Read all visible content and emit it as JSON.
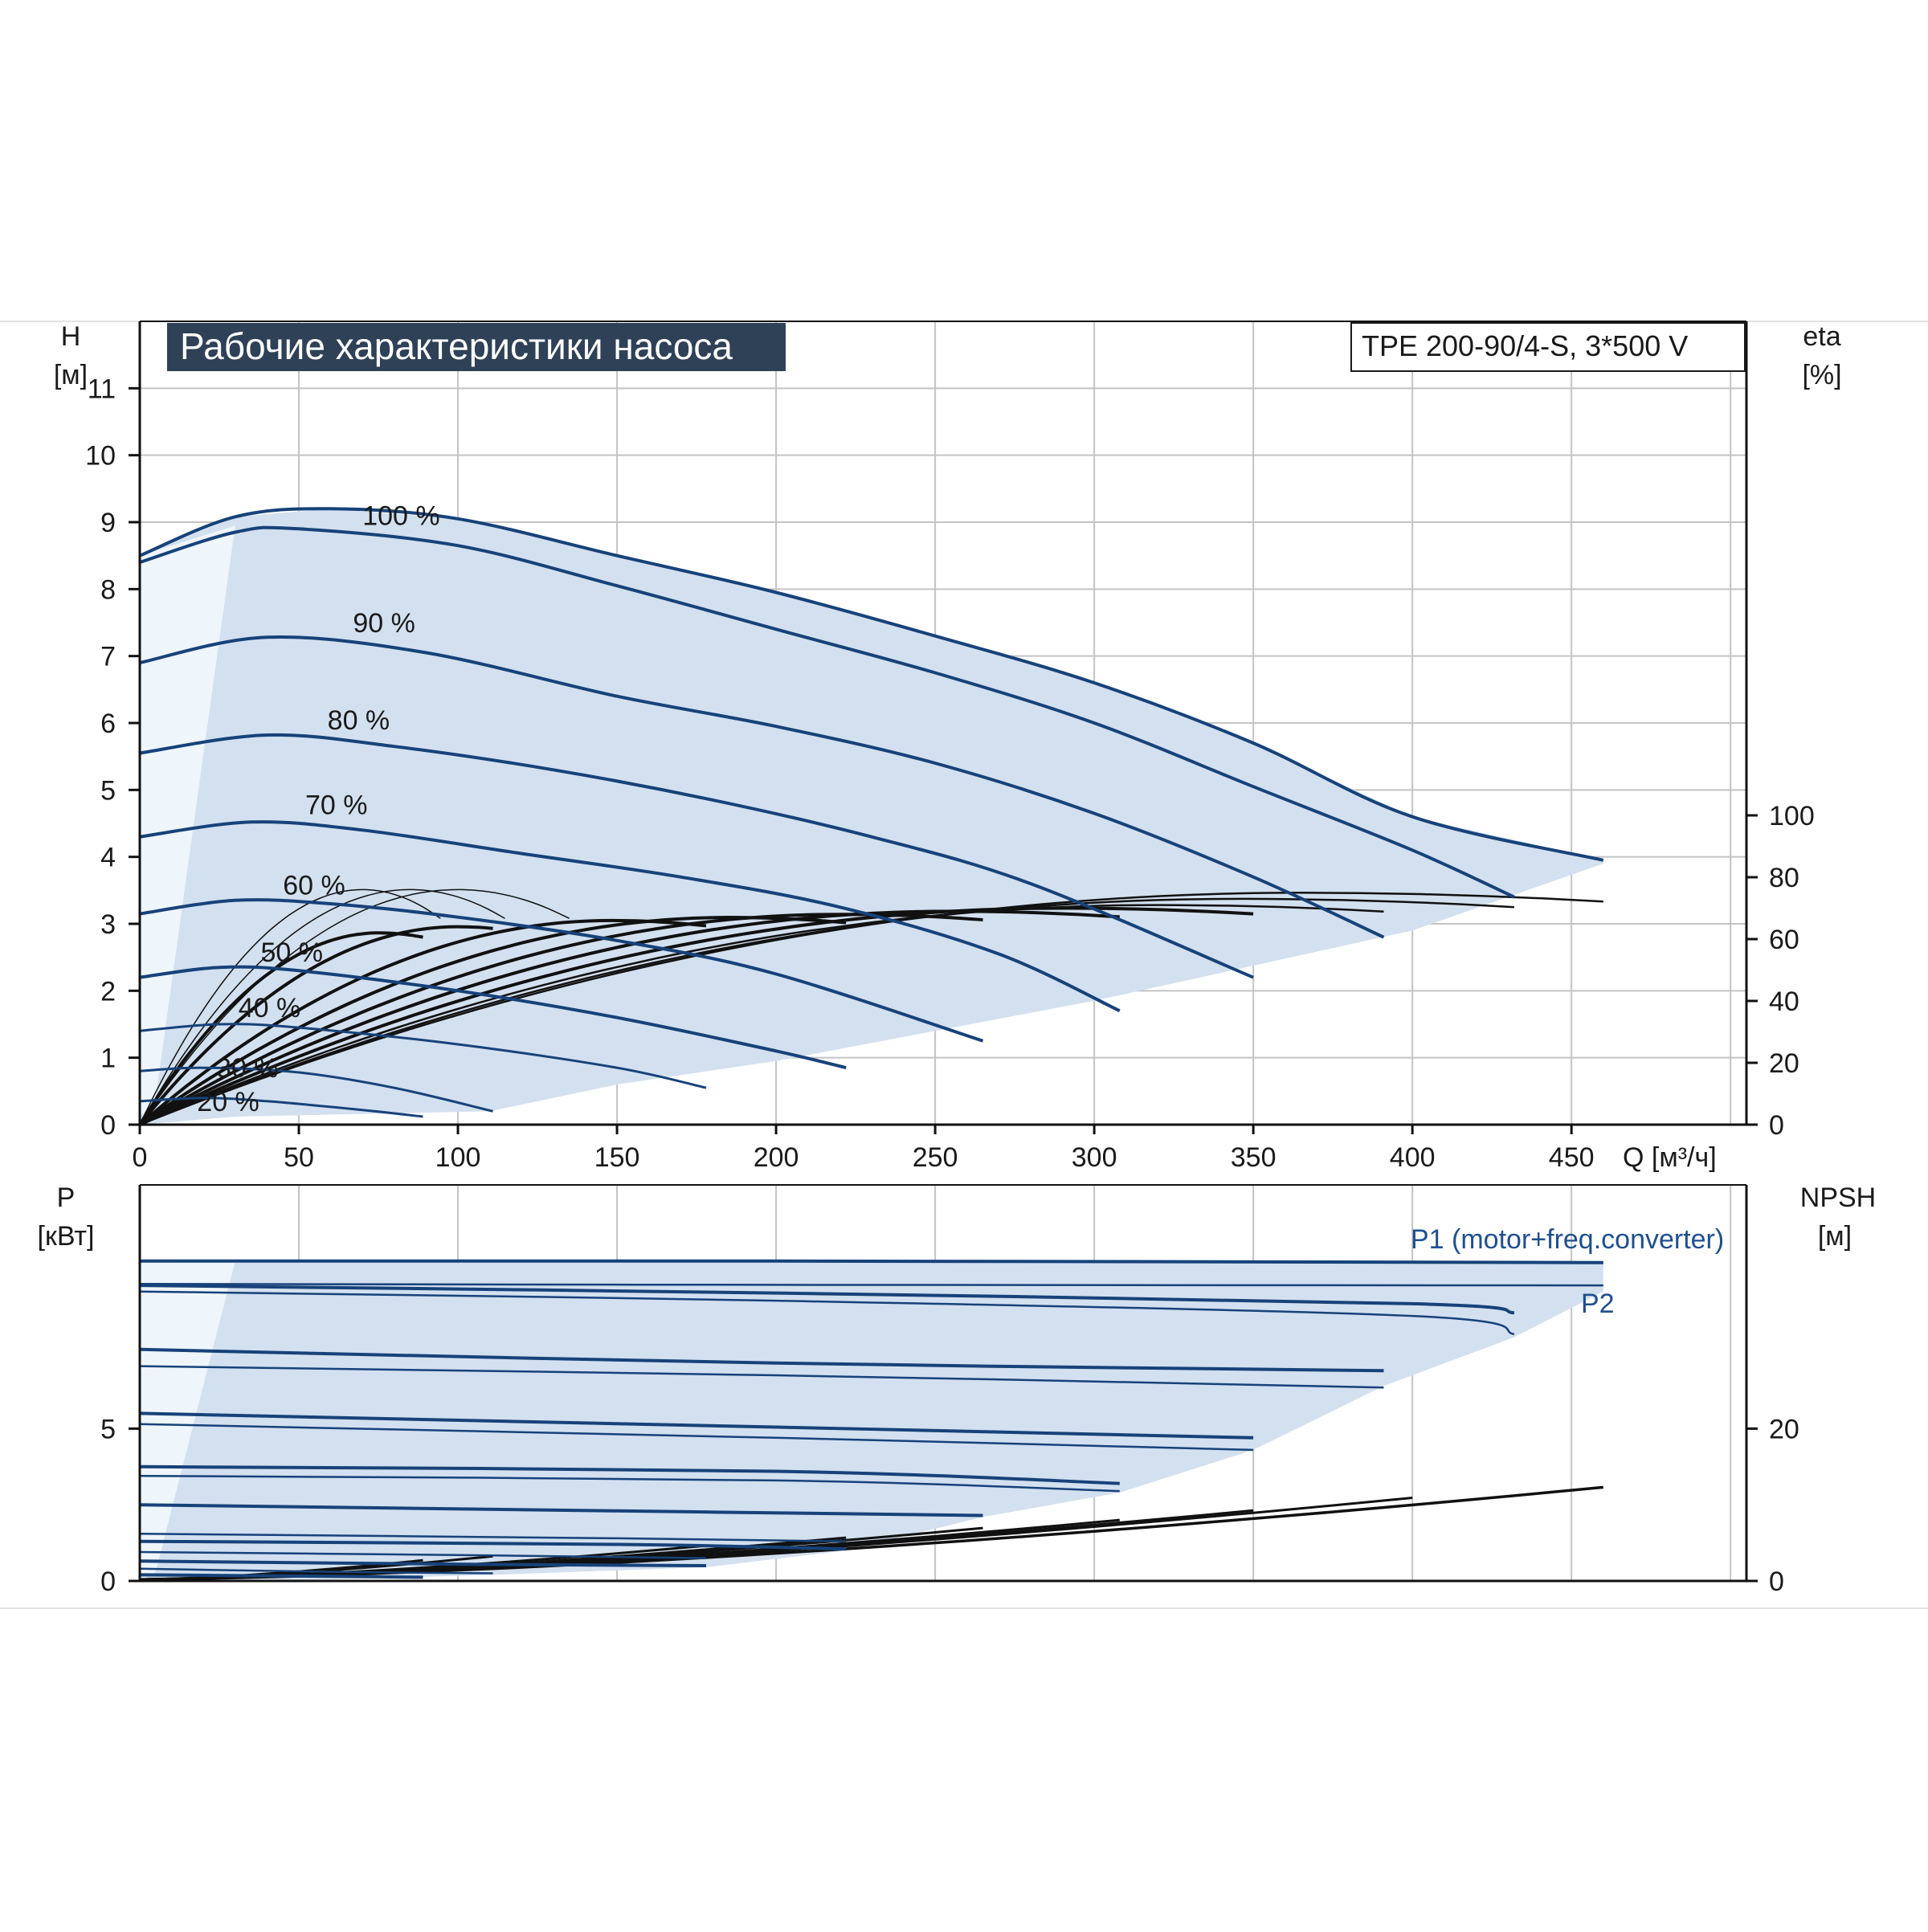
{
  "title": "Рабочие характеристики насоса",
  "model": "TPE 200-90/4-S, 3*500 V",
  "colors": {
    "region_fill": "#d3e0ef",
    "region_fill_light": "#eef5fb",
    "curve_blue": "#17427a",
    "grid": "#c4c4c4",
    "title_bg": "#2e4157"
  },
  "chart_data": [
    {
      "type": "line",
      "panel": "head",
      "xlabel": "Q [м³/ч]",
      "ylabel": "H",
      "ylabel_unit": "[м]",
      "y2label": "eta",
      "y2label_unit": "[%]",
      "xlim": [
        0,
        505
      ],
      "ylim": [
        0,
        12
      ],
      "y2lim": [
        0,
        100
      ],
      "x_ticks": [
        "0",
        "50",
        "100",
        "150",
        "200",
        "250",
        "300",
        "350",
        "400",
        "450"
      ],
      "y_ticks": [
        "0",
        "1",
        "2",
        "3",
        "4",
        "5",
        "6",
        "7",
        "8",
        "9",
        "10",
        "11"
      ],
      "y2_ticks": [
        "0",
        "20",
        "40",
        "60",
        "80",
        "100"
      ],
      "grid": true,
      "series": [
        {
          "name": "100 %",
          "label_at": [
            70,
            9.1
          ],
          "x": [
            0,
            30,
            60,
            100,
            150,
            200,
            250,
            300,
            350,
            400,
            460
          ],
          "y": [
            8.5,
            9.08,
            9.2,
            9.05,
            8.5,
            7.95,
            7.3,
            6.6,
            5.7,
            4.6,
            3.95
          ]
        },
        {
          "name": "",
          "x": [
            0,
            30,
            50,
            100,
            150,
            200,
            250,
            300,
            350,
            400,
            432
          ],
          "y": [
            8.4,
            8.85,
            8.9,
            8.65,
            8.05,
            7.4,
            6.75,
            6.0,
            5.05,
            4.1,
            3.4
          ]
        },
        {
          "name": "90 %",
          "label_at": [
            67,
            7.5
          ],
          "x": [
            0,
            40,
            90,
            150,
            200,
            250,
            300,
            350,
            391
          ],
          "y": [
            6.9,
            7.28,
            7.05,
            6.4,
            5.95,
            5.4,
            4.65,
            3.7,
            2.8
          ]
        },
        {
          "name": "80 %",
          "label_at": [
            59,
            6.05
          ],
          "x": [
            0,
            40,
            80,
            130,
            180,
            230,
            280,
            350
          ],
          "y": [
            5.55,
            5.82,
            5.65,
            5.3,
            4.85,
            4.3,
            3.6,
            2.2
          ]
        },
        {
          "name": "70 %",
          "label_at": [
            52,
            4.78
          ],
          "x": [
            0,
            35,
            70,
            120,
            170,
            220,
            270,
            308
          ],
          "y": [
            4.3,
            4.52,
            4.4,
            4.05,
            3.7,
            3.25,
            2.55,
            1.7
          ]
        },
        {
          "name": "60 %",
          "label_at": [
            45,
            3.58
          ],
          "x": [
            0,
            30,
            60,
            100,
            150,
            200,
            265
          ],
          "y": [
            3.15,
            3.35,
            3.3,
            3.1,
            2.75,
            2.25,
            1.25
          ]
        },
        {
          "name": "50 %",
          "label_at": [
            38,
            2.58
          ],
          "x": [
            0,
            25,
            50,
            100,
            150,
            200,
            222
          ],
          "y": [
            2.2,
            2.35,
            2.3,
            2.0,
            1.6,
            1.1,
            0.85
          ]
        },
        {
          "name": "40 %",
          "label_at": [
            31,
            1.75
          ],
          "x": [
            0,
            25,
            50,
            100,
            150,
            178
          ],
          "y": [
            1.4,
            1.5,
            1.45,
            1.2,
            0.85,
            0.55
          ]
        },
        {
          "name": "30 %",
          "label_at": [
            24,
            0.85
          ],
          "x": [
            0,
            20,
            50,
            80,
            111
          ],
          "y": [
            0.8,
            0.85,
            0.78,
            0.55,
            0.2
          ]
        },
        {
          "name": "20 %",
          "label_at": [
            18,
            0.35
          ],
          "x": [
            0,
            20,
            40,
            70,
            89
          ],
          "y": [
            0.35,
            0.4,
            0.35,
            0.22,
            0.12
          ]
        }
      ]
    },
    {
      "type": "line",
      "panel": "power",
      "ylabel": "P",
      "ylabel_unit": "[кВт]",
      "y2label": "NPSH",
      "y2label_unit": "[м]",
      "xlim": [
        0,
        505
      ],
      "ylim": [
        0,
        13
      ],
      "y2lim": [
        0,
        52
      ],
      "y_ticks": [
        "0",
        "5"
      ],
      "y2_ticks": [
        "0",
        "20"
      ],
      "grid": true,
      "legend": [
        "P1 (motor+freq.converter)",
        "P2"
      ],
      "series": [
        {
          "name": "",
          "x": [
            0,
            200,
            460
          ],
          "y": [
            10.5,
            10.5,
            10.45
          ]
        },
        {
          "name": "",
          "x": [
            0,
            200,
            460
          ],
          "y": [
            9.75,
            9.72,
            9.7
          ]
        },
        {
          "name": "",
          "x": [
            0,
            200,
            400,
            432
          ],
          "y": [
            9.7,
            9.45,
            9.1,
            8.8
          ]
        },
        {
          "name": "",
          "x": [
            0,
            200,
            400,
            432
          ],
          "y": [
            9.5,
            9.2,
            8.7,
            8.1
          ]
        },
        {
          "name": "",
          "x": [
            0,
            200,
            391
          ],
          "y": [
            7.6,
            7.15,
            6.9
          ]
        },
        {
          "name": "",
          "x": [
            0,
            200,
            391
          ],
          "y": [
            7.05,
            6.75,
            6.35
          ]
        },
        {
          "name": "",
          "x": [
            0,
            200,
            350
          ],
          "y": [
            5.5,
            5.05,
            4.7
          ]
        },
        {
          "name": "",
          "x": [
            0,
            200,
            350
          ],
          "y": [
            5.15,
            4.7,
            4.3
          ]
        },
        {
          "name": "",
          "x": [
            0,
            200,
            308
          ],
          "y": [
            3.75,
            3.6,
            3.2
          ]
        },
        {
          "name": "",
          "x": [
            0,
            200,
            308
          ],
          "y": [
            3.45,
            3.3,
            2.95
          ]
        },
        {
          "name": "",
          "x": [
            0,
            150,
            265
          ],
          "y": [
            2.5,
            2.3,
            2.15
          ]
        },
        {
          "name": "",
          "x": [
            0,
            150,
            222
          ],
          "y": [
            1.55,
            1.4,
            1.3
          ]
        },
        {
          "name": "",
          "x": [
            0,
            150,
            222
          ],
          "y": [
            1.3,
            1.2,
            1.05
          ]
        },
        {
          "name": "",
          "x": [
            0,
            100,
            178
          ],
          "y": [
            0.95,
            0.85,
            0.75
          ]
        },
        {
          "name": "",
          "x": [
            0,
            100,
            178
          ],
          "y": [
            0.65,
            0.55,
            0.5
          ]
        },
        {
          "name": "",
          "x": [
            0,
            60,
            111
          ],
          "y": [
            0.4,
            0.3,
            0.25
          ]
        },
        {
          "name": "",
          "x": [
            0,
            60,
            89
          ],
          "y": [
            0.2,
            0.15,
            0.12
          ]
        }
      ]
    }
  ]
}
